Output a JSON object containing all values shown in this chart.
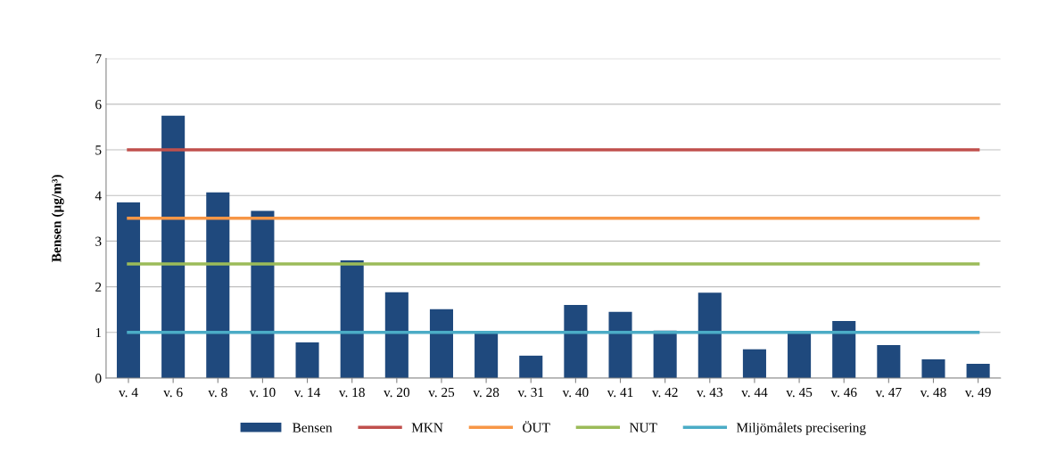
{
  "chart_data": {
    "type": "bar",
    "ylabel": "Bensen (µg/m³)",
    "categories": [
      "v. 4",
      "v. 6",
      "v. 8",
      "v. 10",
      "v. 14",
      "v. 18",
      "v. 20",
      "v. 25",
      "v. 28",
      "v. 31",
      "v. 40",
      "v. 41",
      "v. 42",
      "v. 43",
      "v. 44",
      "v. 45",
      "v. 46",
      "v. 47",
      "v. 48",
      "v. 49"
    ],
    "series": [
      {
        "name": "Bensen",
        "color": "#1f497d",
        "values": [
          3.85,
          5.75,
          4.07,
          3.66,
          0.78,
          2.58,
          1.88,
          1.51,
          1.02,
          0.49,
          1.6,
          1.45,
          1.04,
          1.87,
          0.63,
          1.0,
          1.25,
          0.72,
          0.41,
          0.31
        ]
      },
      {
        "name": "MKN",
        "type": "line",
        "color": "#c0504d",
        "values": [
          5,
          5,
          5,
          5,
          5,
          5,
          5,
          5,
          5,
          5,
          5,
          5,
          5,
          5,
          5,
          5,
          5,
          5,
          5,
          5
        ]
      },
      {
        "name": "ÖUT",
        "type": "line",
        "color": "#f79646",
        "values": [
          3.5,
          3.5,
          3.5,
          3.5,
          3.5,
          3.5,
          3.5,
          3.5,
          3.5,
          3.5,
          3.5,
          3.5,
          3.5,
          3.5,
          3.5,
          3.5,
          3.5,
          3.5,
          3.5,
          3.5
        ]
      },
      {
        "name": "NUT",
        "type": "line",
        "color": "#9bbb59",
        "values": [
          2.5,
          2.5,
          2.5,
          2.5,
          2.5,
          2.5,
          2.5,
          2.5,
          2.5,
          2.5,
          2.5,
          2.5,
          2.5,
          2.5,
          2.5,
          2.5,
          2.5,
          2.5,
          2.5,
          2.5
        ]
      },
      {
        "name": "Miljömålets precisering",
        "type": "line",
        "color": "#4bacc6",
        "values": [
          1,
          1,
          1,
          1,
          1,
          1,
          1,
          1,
          1,
          1,
          1,
          1,
          1,
          1,
          1,
          1,
          1,
          1,
          1,
          1
        ]
      }
    ],
    "ylim": [
      0,
      7
    ],
    "yticks": [
      0,
      1,
      2,
      3,
      4,
      5,
      6,
      7
    ],
    "grid": "y",
    "legend": "bottom",
    "marker": "none",
    "line_style": "solid"
  }
}
